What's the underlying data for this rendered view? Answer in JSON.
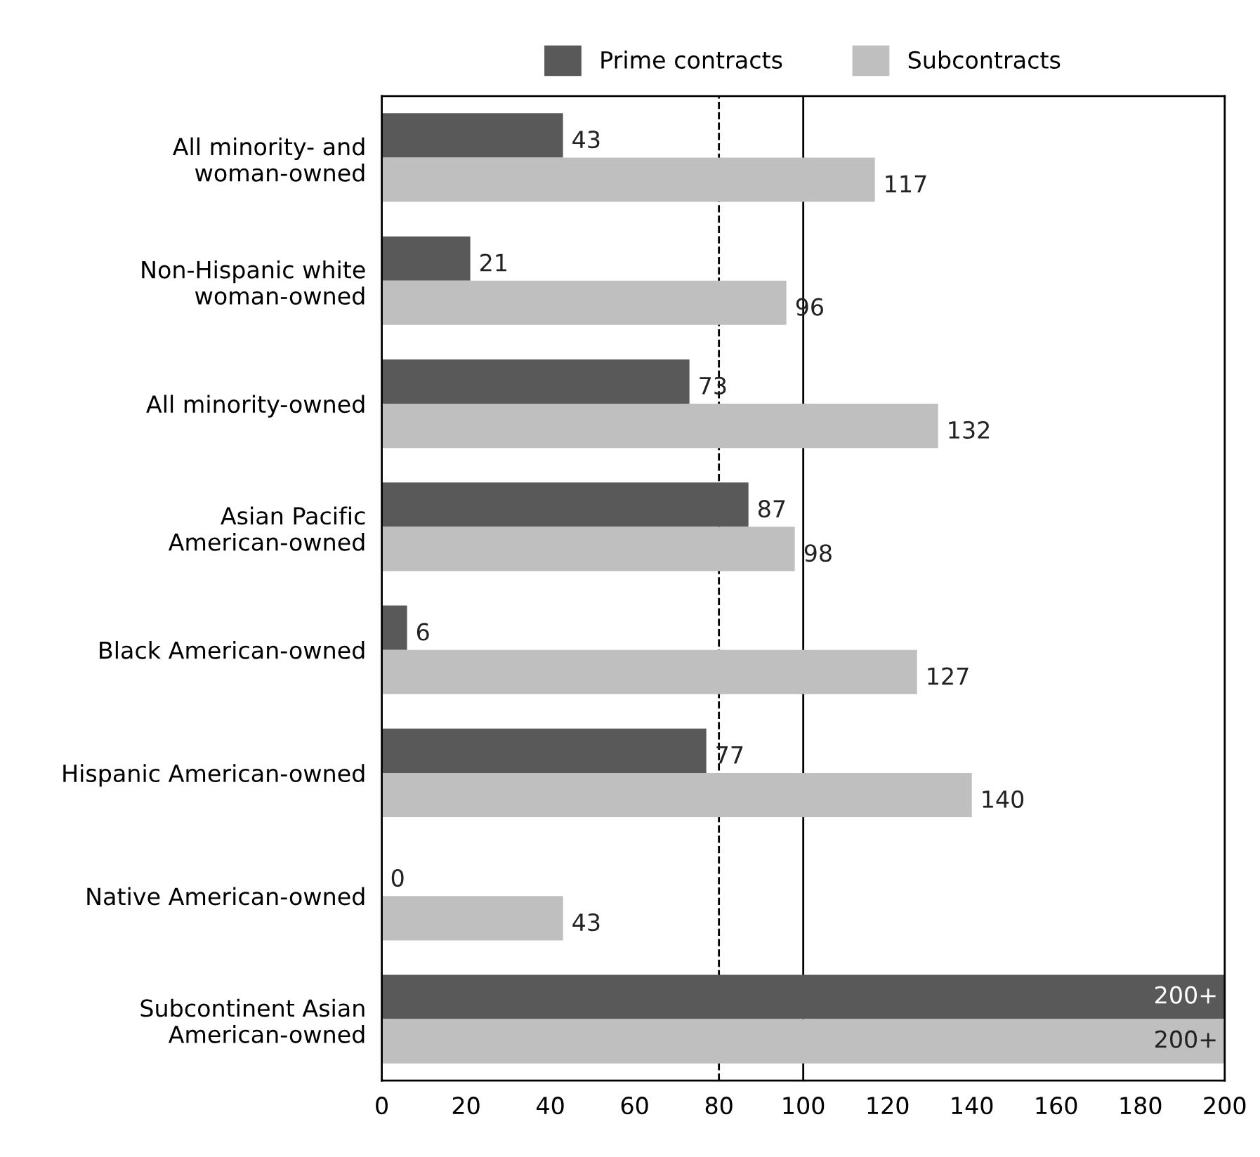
{
  "chart_data": {
    "type": "bar",
    "orientation": "horizontal",
    "categories": [
      "All minority- and\nwoman-owned",
      "Non-Hispanic white\nwoman-owned",
      "All minority-owned",
      "Asian Pacific\nAmerican-owned",
      "Black American-owned",
      "Hispanic American-owned",
      "Native American-owned",
      "Subcontinent Asian\nAmerican-owned"
    ],
    "series": [
      {
        "name": "Prime contracts",
        "color": "#595959",
        "values": [
          43,
          21,
          73,
          87,
          6,
          77,
          0,
          200
        ],
        "value_labels": [
          "43",
          "21",
          "73",
          "87",
          "6",
          "77",
          "0",
          "200+"
        ]
      },
      {
        "name": "Subcontracts",
        "color": "#bfbfbf",
        "values": [
          117,
          96,
          132,
          98,
          127,
          140,
          43,
          200
        ],
        "value_labels": [
          "117",
          "96",
          "132",
          "98",
          "127",
          "140",
          "43",
          "200+"
        ]
      }
    ],
    "xlim": [
      0,
      200
    ],
    "xticks": [
      0,
      20,
      40,
      60,
      80,
      100,
      120,
      140,
      160,
      180,
      200
    ],
    "ref_lines": [
      {
        "axis": "x",
        "value": 80,
        "color": "#000000",
        "line_style": "dashed"
      },
      {
        "axis": "x",
        "value": 100,
        "color": "#000000",
        "line_style": "solid"
      }
    ],
    "legend": "top",
    "grid": false
  }
}
